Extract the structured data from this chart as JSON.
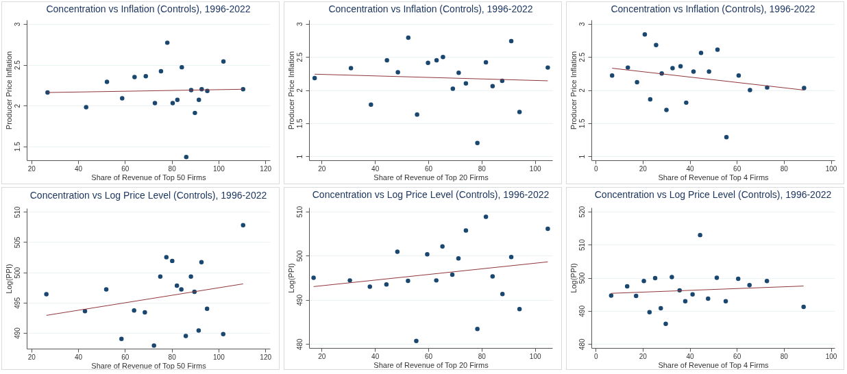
{
  "chart_data": [
    {
      "type": "scatter",
      "title": "Concentration vs Inflation (Controls), 1996-2022",
      "xlabel": "Share of Revenue of Top 50 Firms",
      "ylabel": "Producer Price Inflation",
      "xlim": [
        18,
        122
      ],
      "ylim": [
        1.33,
        3.05
      ],
      "xticks": [
        20,
        40,
        60,
        80,
        100,
        120
      ],
      "yticks": [
        1.5,
        2,
        2.5,
        3
      ],
      "grid": "y",
      "marker": "circle",
      "series": [
        {
          "color": "#1a476f",
          "x": [
            26.9,
            43.4,
            52.3,
            58.8,
            64.1,
            68.9,
            72.8,
            75.4,
            78.1,
            80.4,
            82.4,
            84.3,
            86.2,
            88.3,
            89.9,
            91.6,
            92.8,
            95.2,
            102.1,
            110.5
          ],
          "values": [
            2.16,
            1.98,
            2.29,
            2.09,
            2.35,
            2.36,
            2.03,
            2.42,
            2.77,
            2.03,
            2.07,
            2.47,
            1.37,
            2.19,
            1.91,
            2.07,
            2.2,
            2.18,
            2.54,
            2.2
          ]
        },
        {
          "type": "line",
          "color": "#90353b",
          "marker": "none",
          "x": [
            26.9,
            110.5
          ],
          "values": [
            2.16,
            2.2
          ]
        }
      ]
    },
    {
      "type": "scatter",
      "title": "Concentration vs Inflation (Controls), 1996-2022",
      "xlabel": "Share of Revenue of Top 20 Firms",
      "ylabel": "Producer Price Inflation",
      "xlim": [
        15.3,
        106.5
      ],
      "ylim": [
        0.94,
        3.06
      ],
      "xticks": [
        20,
        40,
        60,
        80,
        100
      ],
      "yticks": [
        1,
        1.5,
        2,
        2.5,
        3
      ],
      "grid": "y",
      "marker": "circle",
      "series": [
        {
          "color": "#1a476f",
          "x": [
            17.4,
            31.0,
            38.5,
            44.5,
            48.6,
            52.5,
            55.8,
            59.9,
            63.1,
            65.5,
            69.2,
            71.4,
            74.1,
            78.4,
            81.6,
            84.1,
            87.7,
            91.1,
            94.2,
            104.8
          ],
          "values": [
            2.18,
            2.33,
            1.78,
            2.45,
            2.27,
            2.79,
            1.63,
            2.41,
            2.45,
            2.5,
            2.02,
            2.26,
            2.1,
            1.2,
            2.42,
            2.06,
            2.14,
            2.74,
            1.67,
            2.34
          ]
        },
        {
          "type": "line",
          "color": "#90353b",
          "marker": "none",
          "x": [
            17.4,
            104.8
          ],
          "values": [
            2.24,
            2.14
          ]
        }
      ]
    },
    {
      "type": "scatter",
      "title": "Concentration vs Inflation (Controls), 1996-2022",
      "xlabel": "Share of Revenue of Top 4 Firms",
      "ylabel": "Producer Price Inflation",
      "xlim": [
        -1.8,
        101.6
      ],
      "ylim": [
        0.94,
        3.06
      ],
      "xticks": [
        0,
        20,
        40,
        60,
        80,
        100
      ],
      "yticks": [
        1,
        1.5,
        2,
        2.5,
        3
      ],
      "grid": "y",
      "marker": "circle",
      "series": [
        {
          "color": "#1a476f",
          "x": [
            7.0,
            13.7,
            17.6,
            20.9,
            23.2,
            25.7,
            28.1,
            30.1,
            32.7,
            36.1,
            38.5,
            41.6,
            44.8,
            48.2,
            51.8,
            55.6,
            60.8,
            65.6,
            72.9,
            88.6
          ],
          "values": [
            2.22,
            2.34,
            2.12,
            2.84,
            1.86,
            2.68,
            2.25,
            1.7,
            2.33,
            2.36,
            1.81,
            2.28,
            2.56,
            2.28,
            2.61,
            1.29,
            2.22,
            2.0,
            2.04,
            2.03
          ]
        },
        {
          "type": "line",
          "color": "#90353b",
          "marker": "none",
          "x": [
            7.0,
            88.6
          ],
          "values": [
            2.33,
            2.0
          ]
        }
      ]
    },
    {
      "type": "scatter",
      "title": "Concentration vs Log Price Level (Controls), 1996-2022",
      "xlabel": "Share of Revenue of Top 50 Firms",
      "ylabel": "Log(PPI)",
      "xlim": [
        18,
        122
      ],
      "ylim": [
        487.4,
        510.6
      ],
      "xticks": [
        20,
        40,
        60,
        80,
        100,
        120
      ],
      "yticks": [
        490,
        495,
        500,
        505,
        510
      ],
      "grid": "y",
      "marker": "circle",
      "series": [
        {
          "color": "#1a476f",
          "x": [
            26.4,
            42.9,
            52.0,
            58.5,
            63.9,
            68.5,
            72.4,
            75.1,
            77.7,
            80.2,
            82.2,
            84.1,
            86.0,
            88.2,
            89.7,
            91.5,
            92.7,
            95.1,
            102.0,
            110.5
          ],
          "values": [
            496.4,
            493.6,
            497.2,
            489.0,
            493.7,
            493.4,
            487.9,
            499.3,
            502.5,
            501.9,
            497.8,
            497.2,
            489.5,
            499.3,
            496.8,
            490.4,
            501.7,
            494.0,
            489.8,
            507.8
          ]
        },
        {
          "type": "line",
          "color": "#90353b",
          "marker": "none",
          "x": [
            26.4,
            110.5
          ],
          "values": [
            492.9,
            498.1
          ]
        }
      ]
    },
    {
      "type": "scatter",
      "title": "Concentration vs Log Price Level (Controls), 1996-2022",
      "xlabel": "Share of Revenue of Top 20 Firms",
      "ylabel": "Log(PPI)",
      "xlim": [
        15.3,
        106.5
      ],
      "ylim": [
        479.1,
        510.9
      ],
      "xticks": [
        20,
        40,
        60,
        80,
        100
      ],
      "yticks": [
        480,
        490,
        500,
        510
      ],
      "grid": "y",
      "marker": "circle",
      "series": [
        {
          "color": "#1a476f",
          "x": [
            17.0,
            30.6,
            38.1,
            44.3,
            48.4,
            52.4,
            55.5,
            59.6,
            63.0,
            65.3,
            69.0,
            71.3,
            74.1,
            78.4,
            81.6,
            84.1,
            87.8,
            91.1,
            94.2,
            104.8
          ],
          "values": [
            495.0,
            494.4,
            493.0,
            493.5,
            500.9,
            494.3,
            480.7,
            500.3,
            494.4,
            502.1,
            495.7,
            499.4,
            505.7,
            483.4,
            508.8,
            495.3,
            491.3,
            499.7,
            487.9,
            506.1
          ]
        },
        {
          "type": "line",
          "color": "#90353b",
          "marker": "none",
          "x": [
            17.0,
            104.8
          ],
          "values": [
            493.0,
            498.6
          ]
        }
      ]
    },
    {
      "type": "scatter",
      "title": "Concentration vs Log Price Level (Controls), 1996-2022",
      "xlabel": "Share of Revenue of Top 4 Firms",
      "ylabel": "Log(PPI)",
      "xlim": [
        -1.8,
        101.6
      ],
      "ylim": [
        478.8,
        521.2
      ],
      "xticks": [
        0,
        20,
        40,
        60,
        80,
        100
      ],
      "yticks": [
        480,
        490,
        500,
        510,
        520
      ],
      "grid": "y",
      "marker": "circle",
      "series": [
        {
          "color": "#1a476f",
          "x": [
            6.6,
            13.4,
            17.2,
            20.5,
            22.9,
            25.3,
            27.7,
            29.8,
            32.4,
            35.7,
            38.1,
            41.2,
            44.4,
            47.8,
            51.5,
            55.3,
            60.6,
            65.4,
            72.8,
            88.4
          ],
          "values": [
            494.6,
            497.4,
            494.5,
            499.0,
            489.6,
            499.9,
            490.8,
            486.1,
            500.2,
            496.2,
            492.9,
            495.0,
            512.9,
            493.7,
            500.0,
            492.9,
            499.7,
            497.8,
            499.0,
            491.2
          ]
        },
        {
          "type": "line",
          "color": "#90353b",
          "marker": "none",
          "x": [
            6.6,
            88.4
          ],
          "values": [
            495.3,
            497.5
          ]
        }
      ]
    }
  ]
}
